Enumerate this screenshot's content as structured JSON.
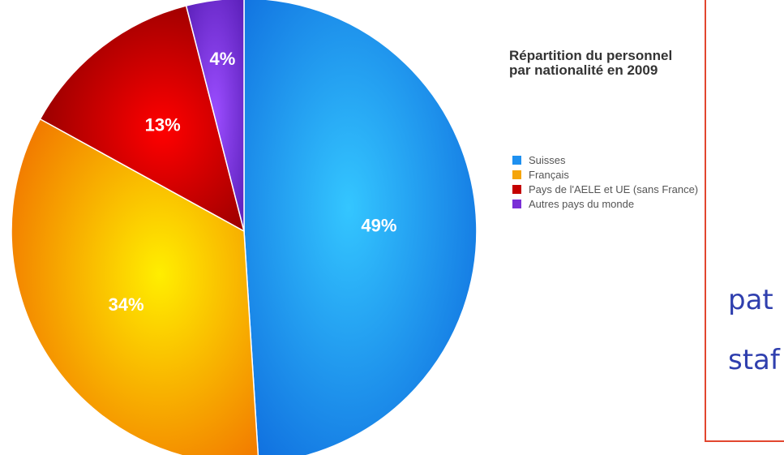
{
  "chart_data": {
    "type": "pie",
    "title_lines": [
      "Répartition du personnel",
      "par nationalité en 2009"
    ],
    "legend_position": "right",
    "slices": [
      {
        "label": "Suisses",
        "value": 49,
        "value_label": "49%",
        "color": "#1e90f0"
      },
      {
        "label": "Français",
        "value": 34,
        "value_label": "34%",
        "color": "#f5a50a"
      },
      {
        "label": "Pays de l'AELE et UE (sans France)",
        "value": 13,
        "value_label": "13%",
        "color": "#c40000"
      },
      {
        "label": "Autres pays du monde",
        "value": 4,
        "value_label": "4%",
        "color": "#7a2fd6"
      }
    ]
  },
  "overlay_text": [
    "pat",
    "staf"
  ]
}
